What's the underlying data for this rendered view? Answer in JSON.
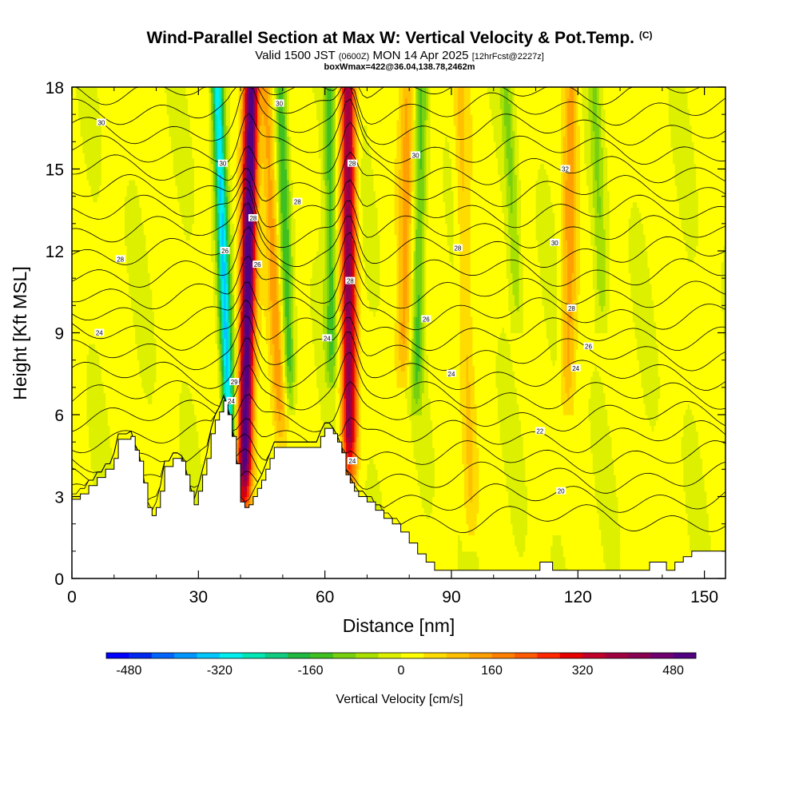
{
  "header": {
    "title": "Wind-Parallel Section at Max W: Vertical Velocity & Pot.Temp.",
    "title_mark": "(C)",
    "valid_prefix": "Valid 1500 JST",
    "valid_utc": "(0600Z)",
    "valid_date": "MON 14 Apr 2025",
    "forecast": "[12hrFcst@2227z]",
    "box_info": "boxWmax=422@36.04,138.78,2462m"
  },
  "chart_data": {
    "type": "heatmap",
    "xlabel": "Distance [nm]",
    "ylabel": "Height [Kft MSL]",
    "xlim": [
      0,
      155
    ],
    "ylim": [
      0,
      18
    ],
    "x_ticks": [
      0,
      30,
      60,
      90,
      120,
      150
    ],
    "y_ticks": [
      0,
      3,
      6,
      9,
      12,
      15,
      18
    ],
    "colorbar": {
      "label": "Vertical Velocity [cm/s]",
      "tick_values": [
        -480,
        -320,
        -160,
        0,
        160,
        320,
        480
      ],
      "min": -520,
      "max": 520,
      "colors": [
        "#0000ff",
        "#0028f0",
        "#0064ff",
        "#0096ff",
        "#00c8ff",
        "#00eeee",
        "#00e6b4",
        "#10cc80",
        "#20b840",
        "#40c020",
        "#78d010",
        "#a8e000",
        "#dcf000",
        "#ffff00",
        "#ffdc00",
        "#ffc000",
        "#ffa000",
        "#ff8000",
        "#ff5a00",
        "#ff2800",
        "#e60000",
        "#c0002a",
        "#a00040",
        "#8a0050",
        "#700070",
        "#500080"
      ]
    },
    "updraft_bands": [
      {
        "x_bottom": 40.5,
        "x_top": 42.5,
        "y_bottom": 2.5,
        "peak": 520
      },
      {
        "x_bottom": 66,
        "x_top": 65.5,
        "y_bottom": 3.5,
        "peak": 400
      },
      {
        "x_bottom": 51,
        "x_top": 46,
        "y_bottom": 4.5,
        "peak": 140
      },
      {
        "x_bottom": 78,
        "x_top": 79.5,
        "y_bottom": 7,
        "peak": 130
      },
      {
        "x_bottom": 117,
        "x_top": 118.5,
        "y_bottom": 6,
        "peak": 120
      },
      {
        "x_bottom": 95,
        "x_top": 92,
        "y_bottom": 1,
        "peak": 80
      }
    ],
    "downdraft_bands": [
      {
        "x_bottom": 38.5,
        "x_top": 34.5,
        "y_bottom": 3.5,
        "peak": -330
      },
      {
        "x_bottom": 62,
        "x_top": 61,
        "y_bottom": 7,
        "peak": -150
      },
      {
        "x_bottom": 53,
        "x_top": 49.5,
        "y_bottom": 6,
        "peak": -160
      },
      {
        "x_bottom": 81,
        "x_top": 83,
        "y_bottom": 6,
        "peak": -130
      },
      {
        "x_bottom": 109,
        "x_top": 103,
        "y_bottom": 9,
        "peak": -90
      },
      {
        "x_bottom": 128,
        "x_top": 124,
        "y_bottom": 9,
        "peak": -80
      }
    ],
    "terrain": [
      [
        0,
        2.9
      ],
      [
        2,
        3.1
      ],
      [
        4,
        3.4
      ],
      [
        6,
        3.7
      ],
      [
        8,
        4.0
      ],
      [
        10,
        4.4
      ],
      [
        11,
        5.1
      ],
      [
        14,
        5.2
      ],
      [
        15,
        4.7
      ],
      [
        16,
        4.3
      ],
      [
        17,
        3.5
      ],
      [
        18,
        2.6
      ],
      [
        19,
        2.3
      ],
      [
        20,
        2.6
      ],
      [
        21,
        3.2
      ],
      [
        22,
        4.1
      ],
      [
        24,
        4.4
      ],
      [
        26,
        4.3
      ],
      [
        27,
        3.8
      ],
      [
        28,
        3.2
      ],
      [
        29,
        2.7
      ],
      [
        30,
        3.2
      ],
      [
        31,
        3.8
      ],
      [
        32,
        4.4
      ],
      [
        33,
        5.3
      ],
      [
        34,
        5.8
      ],
      [
        35,
        6.1
      ],
      [
        36,
        6.5
      ],
      [
        37,
        6.0
      ],
      [
        38,
        5.2
      ],
      [
        39,
        4.2
      ],
      [
        40,
        2.8
      ],
      [
        41,
        2.6
      ],
      [
        42,
        2.7
      ],
      [
        43,
        3.0
      ],
      [
        44,
        3.3
      ],
      [
        45,
        3.6
      ],
      [
        46,
        4.0
      ],
      [
        47,
        4.4
      ],
      [
        48,
        4.8
      ],
      [
        58,
        4.8
      ],
      [
        59,
        5.2
      ],
      [
        60,
        5.5
      ],
      [
        62,
        5.3
      ],
      [
        63,
        5.0
      ],
      [
        64,
        4.6
      ],
      [
        65,
        3.8
      ],
      [
        66,
        3.5
      ],
      [
        67,
        3.2
      ],
      [
        68,
        3.0
      ],
      [
        70,
        2.8
      ],
      [
        72,
        2.5
      ],
      [
        74,
        2.2
      ],
      [
        76,
        2.0
      ],
      [
        78,
        1.7
      ],
      [
        80,
        1.3
      ],
      [
        82,
        0.9
      ],
      [
        84,
        0.6
      ],
      [
        86,
        0.3
      ],
      [
        110,
        0.3
      ],
      [
        111,
        0.6
      ],
      [
        113,
        0.6
      ],
      [
        114,
        0.3
      ],
      [
        136,
        0.3
      ],
      [
        137,
        0.6
      ],
      [
        140,
        0.6
      ],
      [
        141,
        0.3
      ],
      [
        143,
        0.6
      ],
      [
        145,
        0.8
      ],
      [
        147,
        1.0
      ],
      [
        155,
        1.0
      ]
    ],
    "isentrope_labels": [
      {
        "text": "30",
        "x": 7,
        "y": 16.7
      },
      {
        "text": "28",
        "x": 11.5,
        "y": 11.7
      },
      {
        "text": "24",
        "x": 6.5,
        "y": 9.0
      },
      {
        "text": "30",
        "x": 35.8,
        "y": 15.2
      },
      {
        "text": "26",
        "x": 36.3,
        "y": 12.0
      },
      {
        "text": "29",
        "x": 38.5,
        "y": 7.2
      },
      {
        "text": "24",
        "x": 37.8,
        "y": 6.5
      },
      {
        "text": "28",
        "x": 43,
        "y": 13.2
      },
      {
        "text": "26",
        "x": 44,
        "y": 11.5
      },
      {
        "text": "30",
        "x": 49.2,
        "y": 17.4
      },
      {
        "text": "28",
        "x": 53.5,
        "y": 13.8
      },
      {
        "text": "24",
        "x": 60.5,
        "y": 8.8
      },
      {
        "text": "28",
        "x": 66.5,
        "y": 15.2
      },
      {
        "text": "28",
        "x": 66,
        "y": 10.9
      },
      {
        "text": "24",
        "x": 66.5,
        "y": 4.3
      },
      {
        "text": "30",
        "x": 81.5,
        "y": 15.5
      },
      {
        "text": "26",
        "x": 84,
        "y": 9.5
      },
      {
        "text": "24",
        "x": 90,
        "y": 7.5
      },
      {
        "text": "28",
        "x": 91.5,
        "y": 12.1
      },
      {
        "text": "22",
        "x": 111,
        "y": 5.4
      },
      {
        "text": "32",
        "x": 117,
        "y": 15.0
      },
      {
        "text": "30",
        "x": 114.5,
        "y": 12.3
      },
      {
        "text": "28",
        "x": 118.5,
        "y": 9.9
      },
      {
        "text": "26",
        "x": 122.5,
        "y": 8.5
      },
      {
        "text": "24",
        "x": 119.5,
        "y": 7.7
      },
      {
        "text": "20",
        "x": 116,
        "y": 3.2
      }
    ]
  }
}
